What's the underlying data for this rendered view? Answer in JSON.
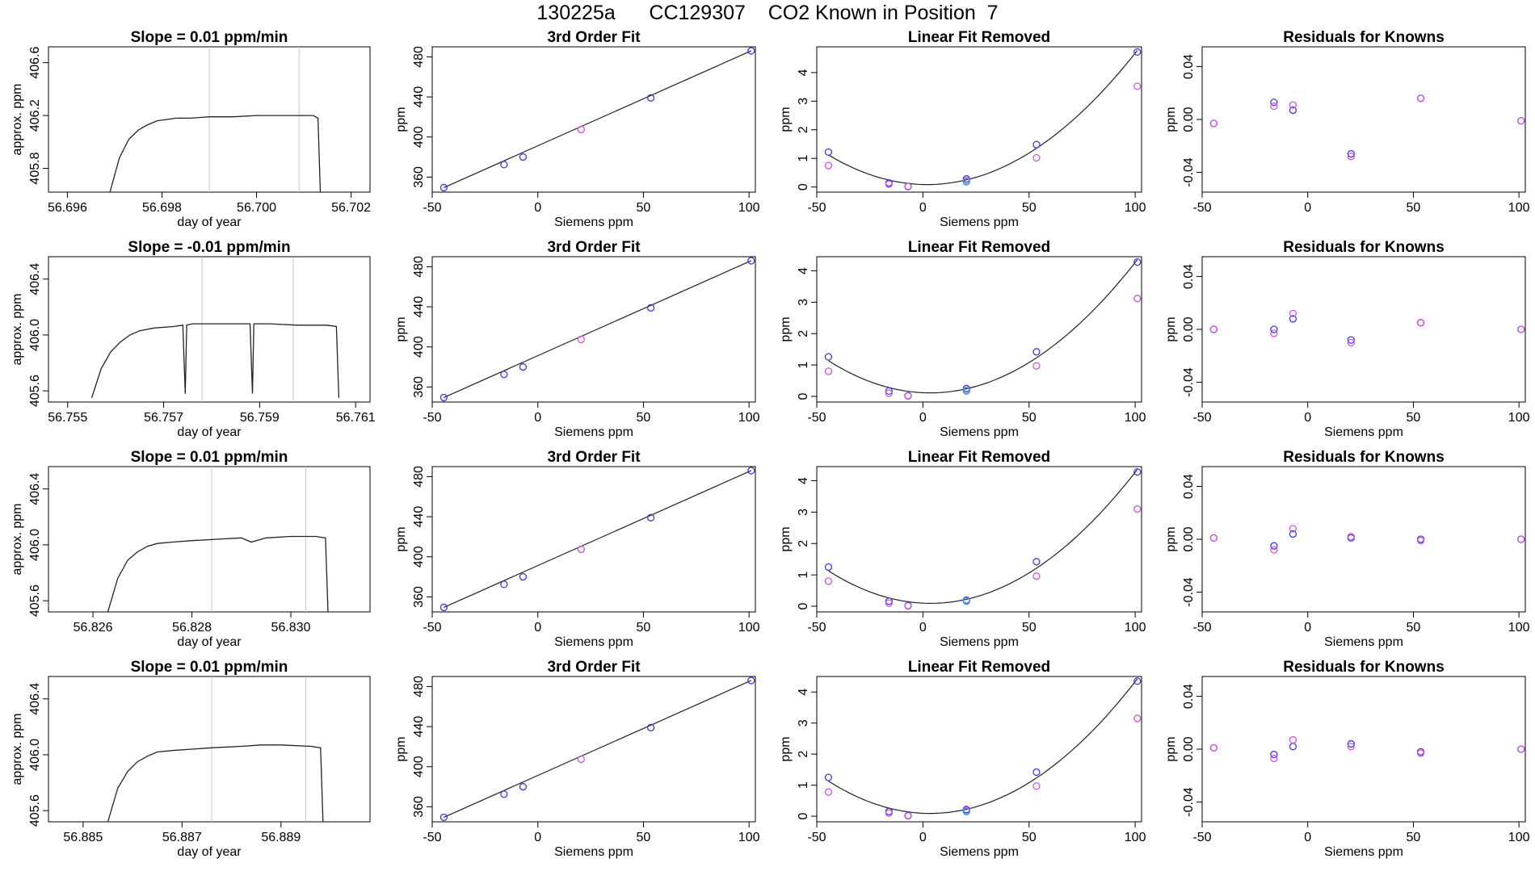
{
  "page_title": "130225a      CC129307    CO2 Known in Position  7",
  "colors": {
    "axis": "#000000",
    "curve": "#222222",
    "blue_points": "#3b3bd6",
    "magenta_points": "#cc55dd",
    "cyan_points": "#33a6d6",
    "red_mark": "#e04040",
    "vline": "#c8c8c8"
  },
  "chart_data": [
    {
      "type": "line",
      "title": "Slope =  0.01  ppm/min",
      "xlabel": "day of year",
      "ylabel": "approx. ppm",
      "xlim": [
        56.6956,
        56.7024
      ],
      "ylim": [
        405.62,
        406.72
      ],
      "xticks": [
        56.696,
        56.698,
        56.7,
        56.702
      ],
      "xtick_labels": [
        "56.696",
        "56.698",
        "56.700",
        "56.702"
      ],
      "yticks": [
        405.8,
        406.2,
        406.6
      ],
      "ytick_labels": [
        "405.8",
        "406.2",
        "406.6"
      ],
      "vlines": [
        56.699,
        56.7009
      ],
      "x": [
        56.6969,
        56.6971,
        56.6973,
        56.6975,
        56.6977,
        56.6979,
        56.6981,
        56.6983,
        56.6986,
        56.699,
        56.6995,
        56.7,
        56.7005,
        56.701,
        56.7012,
        56.7013,
        56.70135
      ],
      "y": [
        405.62,
        405.88,
        406.02,
        406.09,
        406.13,
        406.16,
        406.17,
        406.18,
        406.18,
        406.19,
        406.19,
        406.2,
        406.2,
        406.2,
        406.2,
        406.18,
        405.62
      ]
    },
    {
      "type": "scatter",
      "title": "3rd Order Fit",
      "xlabel": "Siemens ppm",
      "ylabel": "ppm",
      "xlim": [
        -50,
        103
      ],
      "ylim": [
        345,
        490
      ],
      "xticks": [
        -50,
        0,
        50,
        100
      ],
      "xtick_labels": [
        "-50",
        "0",
        "50",
        "100"
      ],
      "yticks": [
        360,
        400,
        440,
        480
      ],
      "ytick_labels": [
        "360",
        "400",
        "440",
        "480"
      ],
      "x": [
        -44.5,
        -16.0,
        -7.0,
        20.5,
        53.5,
        101.0
      ],
      "y": [
        349.5,
        372.5,
        380.0,
        407.5,
        439.0,
        486.0
      ]
    },
    {
      "type": "scatter",
      "title": "Linear Fit Removed",
      "xlabel": "Siemens ppm",
      "ylabel": "ppm",
      "xlim": [
        -50,
        103
      ],
      "ylim": [
        -0.18,
        4.9
      ],
      "xticks": [
        -50,
        0,
        50,
        100
      ],
      "xtick_labels": [
        "-50",
        "0",
        "50",
        "100"
      ],
      "yticks": [
        0,
        1,
        2,
        3,
        4
      ],
      "ytick_labels": [
        "0",
        "1",
        "2",
        "3",
        "4"
      ],
      "series": [
        {
          "x": [
            -44.5,
            -16.0,
            -7.0,
            20.5,
            53.5,
            101.0
          ],
          "y": [
            1.22,
            0.14,
            0.02,
            0.28,
            1.48,
            4.72
          ]
        },
        {
          "x": [
            -44.5,
            -16.0,
            -7.0,
            20.5,
            53.5,
            101.0
          ],
          "y": [
            0.75,
            0.1,
            0.01,
            0.22,
            1.02,
            3.52
          ]
        },
        {
          "x": [
            20.5
          ],
          "y": [
            0.18
          ]
        }
      ]
    },
    {
      "type": "scatter",
      "title": "Residuals for Knowns",
      "xlabel": "",
      "ylabel": "ppm",
      "xlim": [
        -50,
        103
      ],
      "ylim": [
        -0.055,
        0.055
      ],
      "xticks": [
        -50,
        0,
        50,
        100
      ],
      "xtick_labels": [
        "-50",
        "0",
        "50",
        "100"
      ],
      "yticks": [
        -0.04,
        0.0,
        0.04
      ],
      "ytick_labels": [
        "-0.04",
        "0.00",
        "0.04"
      ],
      "series": [
        {
          "x": [
            -44.5,
            -16.0,
            -7.0,
            20.5,
            53.5,
            101.0
          ],
          "y": [
            -0.003,
            0.013,
            0.007,
            -0.026,
            0.016,
            -0.001
          ]
        },
        {
          "x": [
            -44.5,
            -16.0,
            -7.0,
            20.5,
            53.5,
            101.0
          ],
          "y": [
            -0.003,
            0.01,
            0.011,
            -0.028,
            0.016,
            -0.001
          ]
        }
      ]
    },
    {
      "type": "line",
      "title": "Slope =  -0.01  ppm/min",
      "xlabel": "day of year",
      "ylabel": "approx. ppm",
      "xlim": [
        56.7546,
        56.7613
      ],
      "ylim": [
        405.52,
        406.56
      ],
      "xticks": [
        56.755,
        56.757,
        56.759,
        56.761
      ],
      "xtick_labels": [
        "56.755",
        "56.757",
        "56.759",
        "56.761"
      ],
      "yticks": [
        405.6,
        406.0,
        406.4
      ],
      "ytick_labels": [
        "405.6",
        "406.0",
        "406.4"
      ],
      "vlines": [
        56.7578,
        56.7597
      ],
      "x": [
        56.7555,
        56.7557,
        56.7559,
        56.7561,
        56.7563,
        56.7565,
        56.7568,
        56.7572,
        56.7574,
        56.75745,
        56.75748,
        56.7576,
        56.7582,
        56.7588,
        56.75885,
        56.75888,
        56.7592,
        56.7598,
        56.7604,
        56.7606,
        56.76065
      ],
      "y": [
        405.55,
        405.76,
        405.88,
        405.95,
        406.0,
        406.03,
        406.05,
        406.06,
        406.07,
        405.58,
        406.07,
        406.08,
        406.08,
        406.08,
        405.58,
        406.08,
        406.08,
        406.07,
        406.07,
        406.06,
        405.55
      ]
    },
    {
      "type": "scatter",
      "title": "3rd Order Fit",
      "xlabel": "Siemens ppm",
      "ylabel": "ppm",
      "xlim": [
        -50,
        103
      ],
      "ylim": [
        345,
        490
      ],
      "xticks": [
        -50,
        0,
        50,
        100
      ],
      "xtick_labels": [
        "-50",
        "0",
        "50",
        "100"
      ],
      "yticks": [
        360,
        400,
        440,
        480
      ],
      "ytick_labels": [
        "360",
        "400",
        "440",
        "480"
      ],
      "x": [
        -44.5,
        -16.0,
        -7.0,
        20.5,
        53.5,
        101.0
      ],
      "y": [
        349.5,
        372.5,
        380.0,
        407.5,
        439.0,
        486.0
      ]
    },
    {
      "type": "scatter",
      "title": "Linear Fit Removed",
      "xlabel": "Siemens ppm",
      "ylabel": "ppm",
      "xlim": [
        -50,
        103
      ],
      "ylim": [
        -0.18,
        4.45
      ],
      "xticks": [
        -50,
        0,
        50,
        100
      ],
      "xtick_labels": [
        "-50",
        "0",
        "50",
        "100"
      ],
      "yticks": [
        0,
        1,
        2,
        3,
        4
      ],
      "ytick_labels": [
        "0",
        "1",
        "2",
        "3",
        "4"
      ],
      "series": [
        {
          "x": [
            -44.5,
            -16.0,
            -7.0,
            20.5,
            53.5,
            101.0
          ],
          "y": [
            1.26,
            0.17,
            0.02,
            0.25,
            1.42,
            4.28
          ]
        },
        {
          "x": [
            -44.5,
            -16.0,
            -7.0,
            20.5,
            53.5,
            101.0
          ],
          "y": [
            0.8,
            0.1,
            0.01,
            0.2,
            0.97,
            3.12
          ]
        },
        {
          "x": [
            20.5
          ],
          "y": [
            0.17
          ]
        }
      ]
    },
    {
      "type": "scatter",
      "title": "Residuals for Knowns",
      "xlabel": "Siemens ppm",
      "ylabel": "ppm",
      "xlim": [
        -50,
        103
      ],
      "ylim": [
        -0.055,
        0.055
      ],
      "xticks": [
        -50,
        0,
        50,
        100
      ],
      "xtick_labels": [
        "-50",
        "0",
        "50",
        "100"
      ],
      "yticks": [
        -0.04,
        0.0,
        0.04
      ],
      "ytick_labels": [
        "-0.04",
        "0.00",
        "0.04"
      ],
      "series": [
        {
          "x": [
            -44.5,
            -16.0,
            -7.0,
            20.5,
            53.5,
            101.0
          ],
          "y": [
            0.0,
            0.0,
            0.008,
            -0.008,
            0.005,
            0.0
          ]
        },
        {
          "x": [
            -44.5,
            -16.0,
            -7.0,
            20.5,
            53.5,
            101.0
          ],
          "y": [
            0.0,
            -0.003,
            0.012,
            -0.01,
            0.005,
            0.0
          ]
        }
      ]
    },
    {
      "type": "line",
      "title": "Slope =  0.01  ppm/min",
      "xlabel": "day of year",
      "ylabel": "approx. ppm",
      "xlim": [
        56.8251,
        56.8316
      ],
      "ylim": [
        405.52,
        406.56
      ],
      "xticks": [
        56.826,
        56.828,
        56.83
      ],
      "xtick_labels": [
        "56.826",
        "56.828",
        "56.830"
      ],
      "yticks": [
        405.6,
        406.0,
        406.4
      ],
      "ytick_labels": [
        "405.6",
        "406.0",
        "406.4"
      ],
      "vlines": [
        56.8284,
        56.8303
      ],
      "x": [
        56.8263,
        56.8265,
        56.8267,
        56.8269,
        56.8271,
        56.8273,
        56.8276,
        56.828,
        56.8285,
        56.829,
        56.8292,
        56.8295,
        56.83,
        56.8305,
        56.8307,
        56.83075
      ],
      "y": [
        405.52,
        405.76,
        405.89,
        405.95,
        405.99,
        406.01,
        406.02,
        406.03,
        406.04,
        406.05,
        406.02,
        406.05,
        406.06,
        406.06,
        406.05,
        405.52
      ]
    },
    {
      "type": "scatter",
      "title": "3rd Order Fit",
      "xlabel": "Siemens ppm",
      "ylabel": "ppm",
      "xlim": [
        -50,
        103
      ],
      "ylim": [
        345,
        490
      ],
      "xticks": [
        -50,
        0,
        50,
        100
      ],
      "xtick_labels": [
        "-50",
        "0",
        "50",
        "100"
      ],
      "yticks": [
        360,
        400,
        440,
        480
      ],
      "ytick_labels": [
        "360",
        "400",
        "440",
        "480"
      ],
      "x": [
        -44.5,
        -16.0,
        -7.0,
        20.5,
        53.5,
        101.0
      ],
      "y": [
        349.5,
        372.5,
        380.0,
        407.5,
        439.0,
        486.0
      ]
    },
    {
      "type": "scatter",
      "title": "Linear Fit Removed",
      "xlabel": "Siemens ppm",
      "ylabel": "ppm",
      "xlim": [
        -50,
        103
      ],
      "ylim": [
        -0.18,
        4.45
      ],
      "xticks": [
        -50,
        0,
        50,
        100
      ],
      "xtick_labels": [
        "-50",
        "0",
        "50",
        "100"
      ],
      "yticks": [
        0,
        1,
        2,
        3,
        4
      ],
      "ytick_labels": [
        "0",
        "1",
        "2",
        "3",
        "4"
      ],
      "series": [
        {
          "x": [
            -44.5,
            -16.0,
            -7.0,
            20.5,
            53.5,
            101.0
          ],
          "y": [
            1.25,
            0.16,
            0.02,
            0.2,
            1.42,
            4.28
          ]
        },
        {
          "x": [
            -44.5,
            -16.0,
            -7.0,
            20.5,
            53.5,
            101.0
          ],
          "y": [
            0.8,
            0.1,
            0.01,
            0.18,
            0.96,
            3.1
          ]
        },
        {
          "x": [
            20.5
          ],
          "y": [
            0.16
          ]
        }
      ]
    },
    {
      "type": "scatter",
      "title": "Residuals for Knowns",
      "xlabel": "Siemens ppm",
      "ylabel": "ppm",
      "xlim": [
        -50,
        103
      ],
      "ylim": [
        -0.055,
        0.055
      ],
      "xticks": [
        -50,
        0,
        50,
        100
      ],
      "xtick_labels": [
        "-50",
        "0",
        "50",
        "100"
      ],
      "yticks": [
        -0.04,
        0.0,
        0.04
      ],
      "ytick_labels": [
        "-0.04",
        "0.00",
        "0.04"
      ],
      "series": [
        {
          "x": [
            -44.5,
            -16.0,
            -7.0,
            20.5,
            53.5,
            101.0
          ],
          "y": [
            0.001,
            -0.005,
            0.004,
            0.001,
            0.0,
            0.0
          ]
        },
        {
          "x": [
            -44.5,
            -16.0,
            -7.0,
            20.5,
            53.5,
            101.0
          ],
          "y": [
            0.001,
            -0.008,
            0.008,
            0.002,
            -0.001,
            0.0
          ]
        }
      ]
    },
    {
      "type": "line",
      "title": "Slope =  0.01  ppm/min",
      "xlabel": "day of year",
      "ylabel": "approx. ppm",
      "xlim": [
        56.8843,
        56.8908
      ],
      "ylim": [
        405.52,
        406.56
      ],
      "xticks": [
        56.885,
        56.887,
        56.889
      ],
      "xtick_labels": [
        "56.885",
        "56.887",
        "56.889"
      ],
      "yticks": [
        405.6,
        406.0,
        406.4
      ],
      "ytick_labels": [
        "405.6",
        "406.0",
        "406.4"
      ],
      "vlines": [
        56.8876,
        56.8895
      ],
      "x": [
        56.8855,
        56.8857,
        56.8859,
        56.8861,
        56.8863,
        56.8865,
        56.8868,
        56.8872,
        56.8876,
        56.8882,
        56.8886,
        56.889,
        56.8896,
        56.8898,
        56.88985
      ],
      "y": [
        405.52,
        405.76,
        405.88,
        405.95,
        405.99,
        406.02,
        406.03,
        406.04,
        406.05,
        406.06,
        406.07,
        406.07,
        406.06,
        406.05,
        405.52
      ]
    },
    {
      "type": "scatter",
      "title": "3rd Order Fit",
      "xlabel": "Siemens ppm",
      "ylabel": "ppm",
      "xlim": [
        -50,
        103
      ],
      "ylim": [
        345,
        490
      ],
      "xticks": [
        -50,
        0,
        50,
        100
      ],
      "xtick_labels": [
        "-50",
        "0",
        "50",
        "100"
      ],
      "yticks": [
        360,
        400,
        440,
        480
      ],
      "ytick_labels": [
        "360",
        "400",
        "440",
        "480"
      ],
      "x": [
        -44.5,
        -16.0,
        -7.0,
        20.5,
        53.5,
        101.0
      ],
      "y": [
        349.5,
        372.5,
        380.0,
        407.5,
        439.0,
        486.0
      ]
    },
    {
      "type": "scatter",
      "title": "Linear Fit Removed",
      "xlabel": "Siemens ppm",
      "ylabel": "ppm",
      "xlim": [
        -50,
        103
      ],
      "ylim": [
        -0.18,
        4.5
      ],
      "xticks": [
        -50,
        0,
        50,
        100
      ],
      "xtick_labels": [
        "-50",
        "0",
        "50",
        "100"
      ],
      "yticks": [
        0,
        1,
        2,
        3,
        4
      ],
      "ytick_labels": [
        "0",
        "1",
        "2",
        "3",
        "4"
      ],
      "series": [
        {
          "x": [
            -44.5,
            -16.0,
            -7.0,
            20.5,
            53.5,
            101.0
          ],
          "y": [
            1.25,
            0.15,
            0.02,
            0.22,
            1.42,
            4.35
          ]
        },
        {
          "x": [
            -44.5,
            -16.0,
            -7.0,
            20.5,
            53.5,
            101.0
          ],
          "y": [
            0.78,
            0.1,
            0.01,
            0.18,
            0.97,
            3.15
          ]
        },
        {
          "x": [
            20.5
          ],
          "y": [
            0.15
          ]
        }
      ]
    },
    {
      "type": "scatter",
      "title": "Residuals for Knowns",
      "xlabel": "Siemens ppm",
      "ylabel": "ppm",
      "xlim": [
        -50,
        103
      ],
      "ylim": [
        -0.055,
        0.055
      ],
      "xticks": [
        -50,
        0,
        50,
        100
      ],
      "xtick_labels": [
        "-50",
        "0",
        "50",
        "100"
      ],
      "yticks": [
        -0.04,
        0.0,
        0.04
      ],
      "ytick_labels": [
        "-0.04",
        "0.00",
        "0.04"
      ],
      "series": [
        {
          "x": [
            -44.5,
            -16.0,
            -7.0,
            20.5,
            53.5,
            101.0
          ],
          "y": [
            0.001,
            -0.004,
            0.002,
            0.004,
            -0.002,
            0.0
          ]
        },
        {
          "x": [
            -44.5,
            -16.0,
            -7.0,
            20.5,
            53.5,
            101.0
          ],
          "y": [
            0.001,
            -0.007,
            0.007,
            0.002,
            -0.003,
            0.0
          ]
        }
      ]
    }
  ]
}
